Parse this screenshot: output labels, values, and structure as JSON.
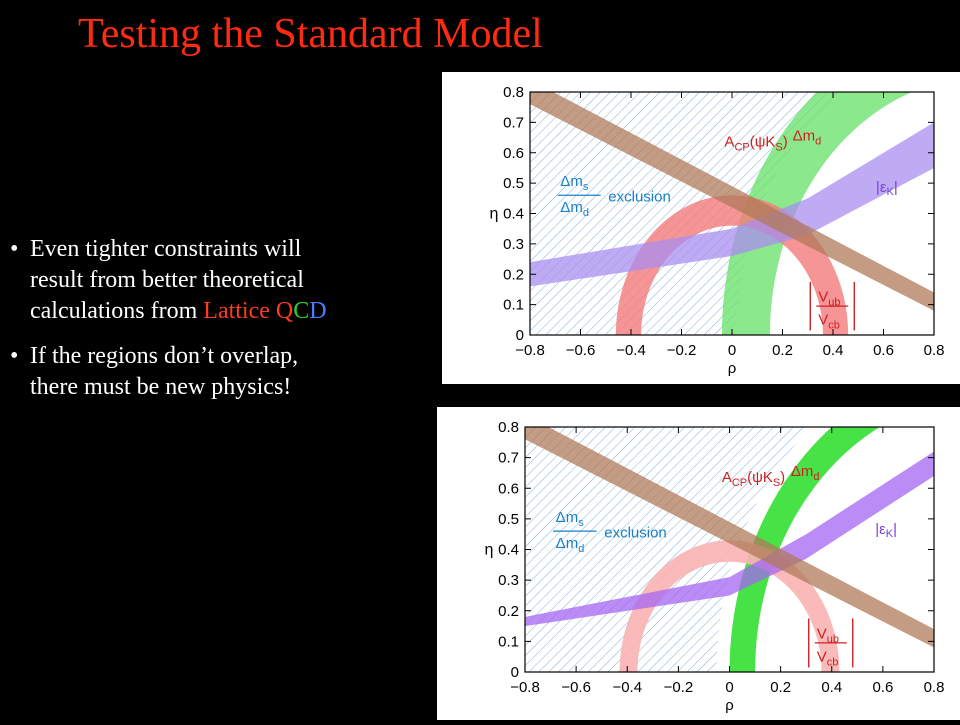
{
  "slide": {
    "title": "Testing the Standard Model",
    "bullets": [
      {
        "dot": "•",
        "text_before": "Even tighter constraints will result from better theoretical calculations from ",
        "highlight_lattice": "Lattice ",
        "q": "Q",
        "c": "C",
        "d": "D"
      },
      {
        "dot": "•",
        "text": "If the regions don’t overlap, there must be new physics!"
      }
    ]
  },
  "plots": [
    {
      "xticks": [
        "−0.8",
        "−0.6",
        "−0.4",
        "−0.2",
        "0",
        "0.2",
        "0.4",
        "0.6",
        "0.8"
      ],
      "yticks": [
        "0",
        "0.1",
        "0.2",
        "0.3",
        "0.4",
        "0.5",
        "0.6",
        "0.7",
        "0.8"
      ],
      "xlabel": "ρ",
      "ylabel": "η",
      "labels": {
        "acp_main": "A",
        "acp_sub": "CP",
        "acp_arg": "(ψK",
        "acp_argsub": "S",
        "acp_close": ")",
        "dm_main": "Δm",
        "dm_sub": "d",
        "dms_num": "Δm",
        "dms_num_sub": "s",
        "dms_den": "Δm",
        "dms_den_sub": "d",
        "exclusion": "exclusion",
        "eps": "|ε",
        "eps_sub": "K",
        "eps_close": "|",
        "vub": "V",
        "vub_sub": "ub",
        "vcb": "V",
        "vcb_sub": "cb"
      },
      "colors": {
        "acp": "#b07a5a",
        "dmd": "#66e066",
        "eps": "#a98ef0",
        "vub": "#f47a7a",
        "excl": "#4b8fd4",
        "label": "#c22"
      }
    },
    {
      "xticks": [
        "−0.8",
        "−0.6",
        "−0.4",
        "−0.2",
        "0",
        "0.2",
        "0.4",
        "0.6",
        "0.8"
      ],
      "yticks": [
        "0",
        "0.1",
        "0.2",
        "0.3",
        "0.4",
        "0.5",
        "0.6",
        "0.7",
        "0.8"
      ],
      "xlabel": "ρ",
      "ylabel": "η",
      "labels": {
        "acp_main": "A",
        "acp_sub": "CP",
        "acp_arg": "(ψK",
        "acp_argsub": "S",
        "acp_close": ")",
        "dm_main": "Δm",
        "dm_sub": "d",
        "dms_num": "Δm",
        "dms_num_sub": "s",
        "dms_den": "Δm",
        "dms_den_sub": "d",
        "exclusion": "exclusion",
        "eps": "|ε",
        "eps_sub": "K",
        "eps_close": "|",
        "vub": "V",
        "vub_sub": "ub",
        "vcb": "V",
        "vcb_sub": "cb"
      },
      "colors": {
        "acp": "#b07a5a",
        "dmd": "#3ce03c",
        "eps": "#a466f2",
        "vub": "#f9b3b3",
        "excl": "#4b8fd4",
        "label": "#c22"
      }
    }
  ]
}
